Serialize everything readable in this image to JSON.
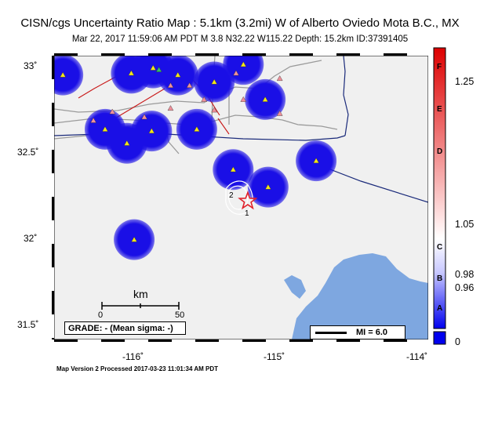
{
  "header": {
    "title": "CISN/cgs Uncertainty Ratio Map : 5.1km (3.2mi) W of Alberto Oviedo Mota B.C., MX",
    "subtitle": "Mar 22, 2017 11:59:06 AM PDT   M 3.8   N32.22 W115.22   Depth: 15.2km   ID:37391405"
  },
  "map": {
    "lat_range": [
      31.43,
      33.05
    ],
    "lon_range": [
      -116.55,
      -113.98
    ],
    "y_ticks": [
      "33˚",
      "32.5˚",
      "32˚",
      "31.5˚"
    ],
    "x_ticks": [
      "-116˚",
      "-115˚",
      "-114˚"
    ],
    "epicenter": {
      "lat": 32.22,
      "lon": -115.22
    },
    "contour_labels": [
      "2",
      "1"
    ],
    "colors": {
      "land": "#f0f0f0",
      "water": "#7ea7e0",
      "station_halo": "#1a0fe6",
      "epicenter": "#e0202a"
    },
    "stations": [
      {
        "lon": -116.49,
        "lat": 32.94,
        "type": "seismic"
      },
      {
        "lon": -116.02,
        "lat": 32.95,
        "type": "seismic"
      },
      {
        "lon": -115.87,
        "lat": 32.98,
        "type": "seismic"
      },
      {
        "lon": -115.7,
        "lat": 32.94,
        "type": "seismic"
      },
      {
        "lon": -115.45,
        "lat": 32.9,
        "type": "seismic"
      },
      {
        "lon": -115.25,
        "lat": 33.0,
        "type": "seismic"
      },
      {
        "lon": -115.1,
        "lat": 32.8,
        "type": "seismic"
      },
      {
        "lon": -116.2,
        "lat": 32.63,
        "type": "seismic"
      },
      {
        "lon": -116.05,
        "lat": 32.55,
        "type": "seismic"
      },
      {
        "lon": -115.88,
        "lat": 32.62,
        "type": "seismic"
      },
      {
        "lon": -115.57,
        "lat": 32.63,
        "type": "seismic"
      },
      {
        "lon": -115.32,
        "lat": 32.4,
        "type": "seismic"
      },
      {
        "lon": -115.08,
        "lat": 32.3,
        "type": "seismic"
      },
      {
        "lon": -114.75,
        "lat": 32.45,
        "type": "seismic"
      },
      {
        "lon": -116.0,
        "lat": 32.0,
        "type": "seismic"
      },
      {
        "lon": -116.15,
        "lat": 32.73,
        "type": "strong"
      },
      {
        "lon": -115.93,
        "lat": 32.7,
        "type": "strong"
      },
      {
        "lon": -115.75,
        "lat": 32.75,
        "type": "strong"
      },
      {
        "lon": -115.52,
        "lat": 32.8,
        "type": "strong"
      },
      {
        "lon": -115.62,
        "lat": 32.88,
        "type": "strong"
      },
      {
        "lon": -115.3,
        "lat": 32.95,
        "type": "strong"
      },
      {
        "lon": -115.45,
        "lat": 32.74,
        "type": "strong"
      },
      {
        "lon": -115.0,
        "lat": 32.92,
        "type": "strong"
      },
      {
        "lon": -115.25,
        "lat": 32.8,
        "type": "strong"
      },
      {
        "lon": -115.75,
        "lat": 32.88,
        "type": "strong"
      },
      {
        "lon": -115.0,
        "lat": 32.72,
        "type": "strong"
      },
      {
        "lon": -116.28,
        "lat": 32.68,
        "type": "strong"
      },
      {
        "lon": -115.83,
        "lat": 32.97,
        "type": "green"
      }
    ]
  },
  "scale_bar": {
    "label": "km",
    "start": "0",
    "end": "50"
  },
  "grade": {
    "text": "GRADE: - (Mean sigma: -)"
  },
  "mi_legend": {
    "text": "MI = 6.0"
  },
  "colorbar": {
    "top_color": "#dd0000",
    "bottom_color": "#0000ee",
    "letters": [
      "F",
      "E",
      "D",
      "C",
      "B",
      "A"
    ],
    "tick_labels": [
      "1.25",
      "1.05",
      "0.98",
      "0.96",
      "0"
    ]
  },
  "footer": {
    "text": "Map Version 2 Processed 2017-03-23 11:01:34 AM PDT"
  }
}
